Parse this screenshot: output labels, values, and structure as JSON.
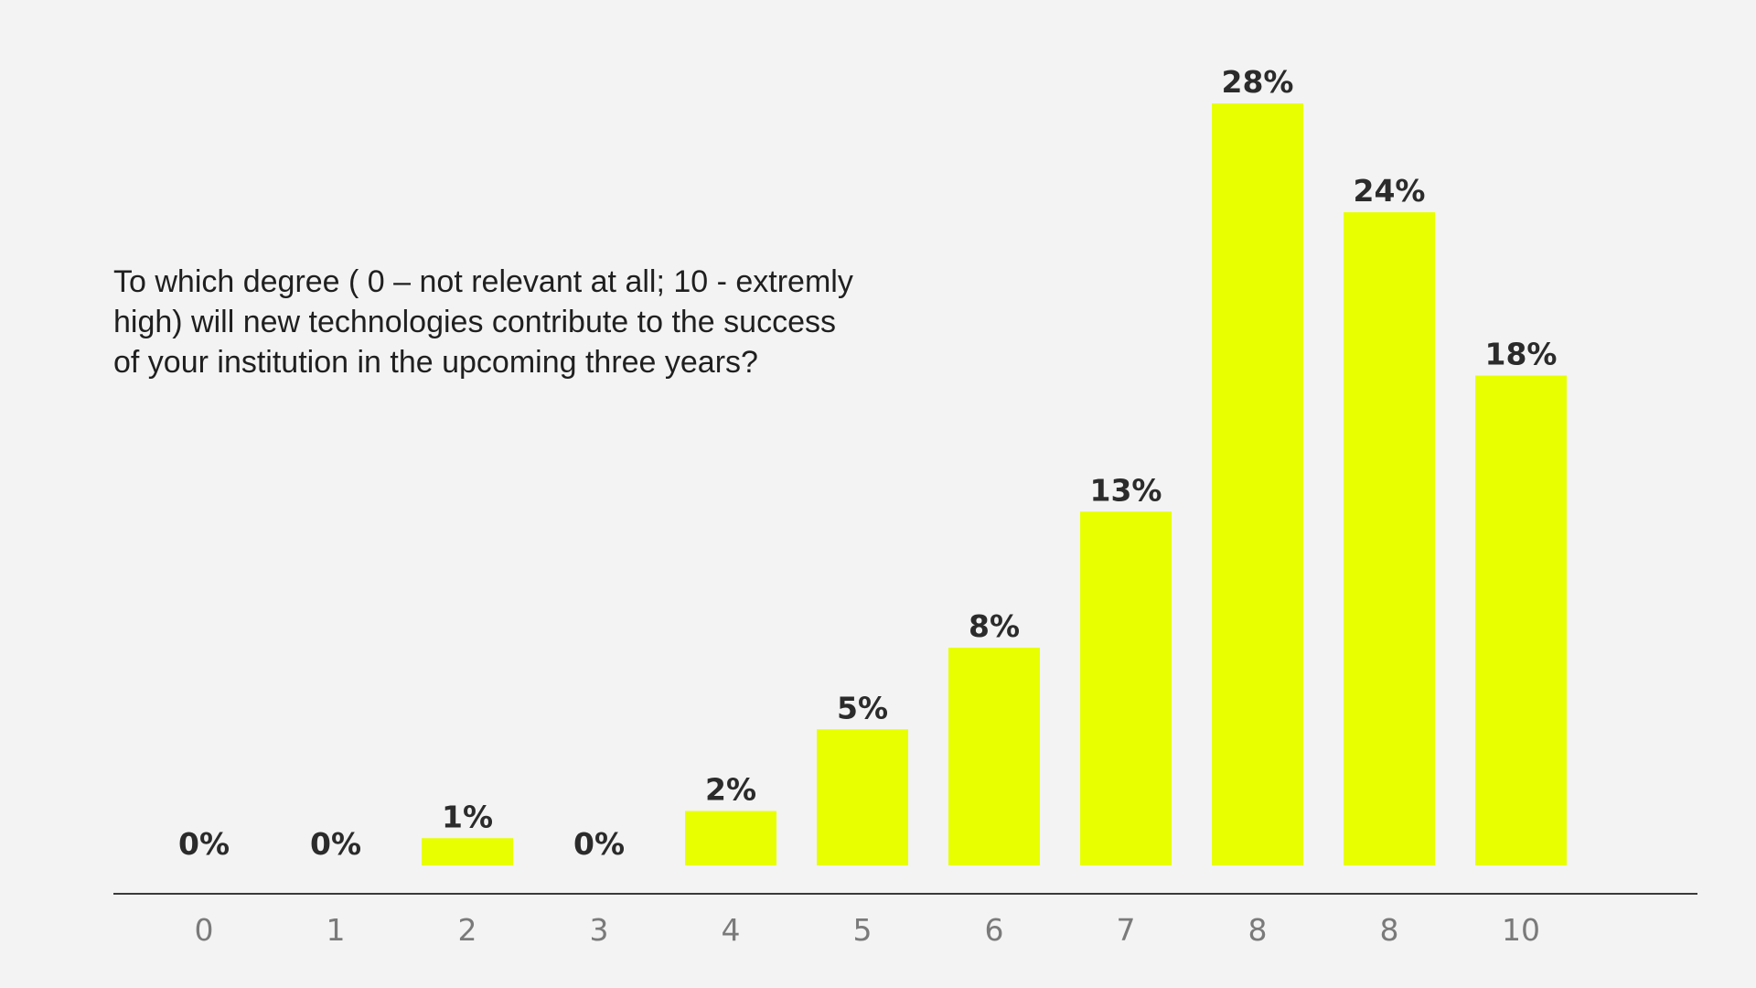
{
  "colors": {
    "background": "#f3f3f3",
    "bar": "#e8ff00",
    "axis": "#3a3a3a",
    "value_label": "#2b2b2b",
    "tick_label": "#7a7a7a"
  },
  "chart_data": {
    "type": "bar",
    "title": "To which degree ( 0 – not relevant at all; 10 - extremly high) will new technologies contribute to the success of your institution in the upcoming three years?",
    "xlabel": "",
    "ylabel": "",
    "categories": [
      "0",
      "1",
      "2",
      "3",
      "4",
      "5",
      "6",
      "7",
      "8",
      "8",
      "10"
    ],
    "values": [
      0,
      0,
      1,
      0,
      2,
      5,
      8,
      13,
      28,
      24,
      18
    ],
    "value_labels": [
      "0%",
      "0%",
      "1%",
      "0%",
      "2%",
      "5%",
      "8%",
      "13%",
      "28%",
      "24%",
      "18%"
    ],
    "ylim": [
      0,
      28
    ],
    "grid": false,
    "legend": "none"
  }
}
